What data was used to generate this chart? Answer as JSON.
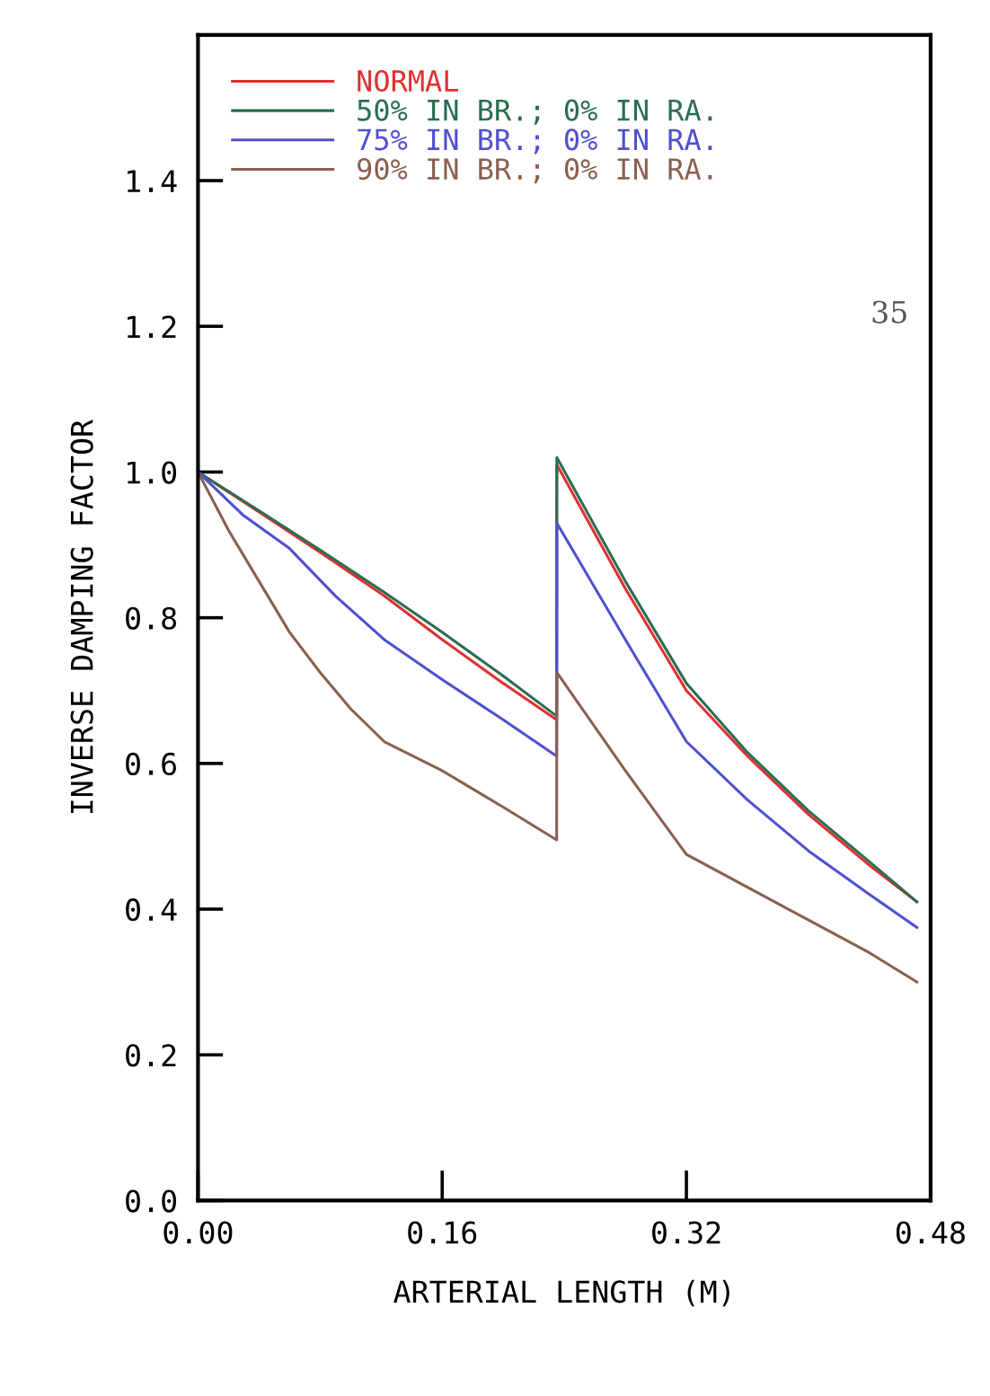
{
  "chart_data": {
    "type": "line",
    "xlabel": "ARTERIAL LENGTH (M)",
    "ylabel": "INVERSE DAMPING FACTOR",
    "xlim": [
      0,
      0.48
    ],
    "xticks": [
      {
        "value": 0,
        "label": "0.00"
      },
      0.16,
      0.32,
      0.48
    ],
    "ylim": [
      0,
      1.6
    ],
    "yticks": [
      {
        "value": 0,
        "label": "0.0"
      },
      0.2,
      0.4,
      0.6,
      0.8,
      {
        "value": 1,
        "label": "1.0"
      },
      1.2,
      1.4
    ],
    "grid": false,
    "legend": "top left",
    "marker": "none",
    "line_style": "solid",
    "annotations": [
      "35"
    ],
    "series": [
      {
        "name": "NORMAL",
        "color": "#e03030",
        "x": [
          0,
          0.04,
          0.08,
          0.122,
          0.16,
          0.2,
          0.235,
          0.2351,
          0.28,
          0.32,
          0.36,
          0.4,
          0.44,
          0.471
        ],
        "values": [
          1.0,
          0.945,
          0.89,
          0.83,
          0.77,
          0.71,
          0.66,
          1.01,
          0.84,
          0.7,
          0.61,
          0.53,
          0.46,
          0.41
        ]
      },
      {
        "name": "50% IN BR.; 0% IN RA.",
        "color": "#2a6e50",
        "x": [
          0,
          0.04,
          0.08,
          0.122,
          0.16,
          0.2,
          0.235,
          0.2351,
          0.28,
          0.32,
          0.36,
          0.4,
          0.44,
          0.471
        ],
        "values": [
          1.0,
          0.947,
          0.893,
          0.835,
          0.78,
          0.72,
          0.665,
          1.02,
          0.85,
          0.71,
          0.615,
          0.535,
          0.465,
          0.41
        ]
      },
      {
        "name": "75% IN BR.; 0% IN RA.",
        "color": "#5050d0",
        "x": [
          0,
          0.03,
          0.06,
          0.09,
          0.122,
          0.16,
          0.2,
          0.235,
          0.2351,
          0.28,
          0.32,
          0.36,
          0.4,
          0.44,
          0.471
        ],
        "values": [
          1.0,
          0.94,
          0.895,
          0.83,
          0.77,
          0.715,
          0.66,
          0.61,
          0.93,
          0.77,
          0.63,
          0.55,
          0.48,
          0.42,
          0.375
        ]
      },
      {
        "name": "90% IN BR.; 0% IN RA.",
        "color": "#8a6050",
        "x": [
          0,
          0.02,
          0.04,
          0.06,
          0.08,
          0.1,
          0.122,
          0.16,
          0.2,
          0.235,
          0.2351,
          0.28,
          0.32,
          0.36,
          0.4,
          0.44,
          0.471
        ],
        "values": [
          1.0,
          0.92,
          0.85,
          0.78,
          0.725,
          0.675,
          0.63,
          0.59,
          0.54,
          0.495,
          0.725,
          0.59,
          0.475,
          0.43,
          0.385,
          0.34,
          0.3
        ]
      }
    ]
  }
}
